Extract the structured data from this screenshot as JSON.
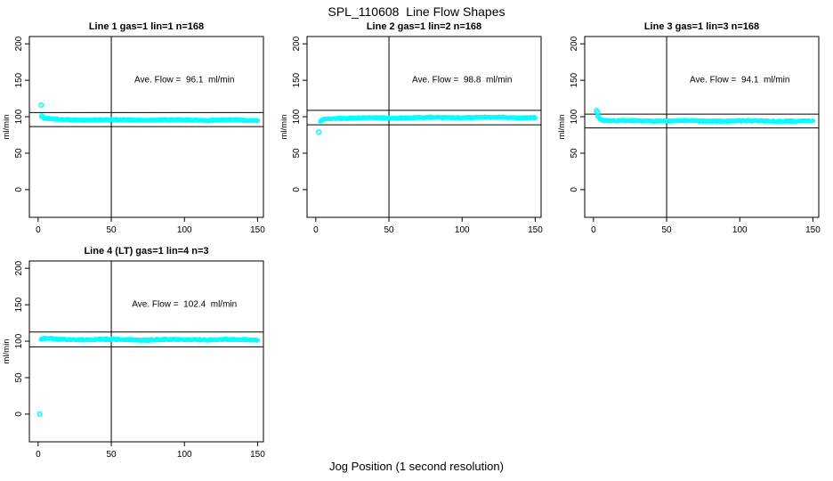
{
  "title": "SPL_110608  Line Flow Shapes",
  "xlabel": "Jog Position (1 second resolution)",
  "ylabel": "ml/min",
  "colors": {
    "points": "#00FFFF",
    "axis": "#000000",
    "background": "#FFFFFF"
  },
  "chart_data": [
    {
      "type": "scatter",
      "title": "Line 1 gas=1 lin=1 n=168",
      "n": 168,
      "ave_flow": 96.1,
      "annotation": "Ave. Flow =  96.1  ml/min",
      "ylabel": "ml/min",
      "x_ticks": [
        0,
        50,
        100,
        150
      ],
      "y_ticks": [
        0,
        50,
        100,
        150,
        200
      ],
      "xlim": [
        -6,
        154
      ],
      "ylim": [
        -38,
        210
      ],
      "ref_lines": {
        "upper": 105.7,
        "lower": 86.5,
        "vertical_x": 50
      },
      "outliers": [
        [
          2,
          116
        ],
        [
          2.5,
          101
        ]
      ],
      "band": {
        "x": [
          3,
          4,
          6,
          10,
          15,
          25,
          50,
          90,
          120,
          150
        ],
        "y": [
          99.5,
          98.2,
          97.2,
          96.4,
          96.0,
          95.7,
          95.6,
          95.5,
          95.3,
          95.2
        ],
        "halfwidth": 1.0,
        "x_start": 3,
        "x_end": 150
      },
      "annotation_center": [
        100,
        147
      ]
    },
    {
      "type": "scatter",
      "title": "Line 2 gas=1 lin=2 n=168",
      "n": 168,
      "ave_flow": 98.8,
      "annotation": "Ave. Flow =  98.8  ml/min",
      "ylabel": "ml/min",
      "x_ticks": [
        0,
        50,
        100,
        150
      ],
      "y_ticks": [
        0,
        50,
        100,
        150,
        200
      ],
      "xlim": [
        -6,
        154
      ],
      "ylim": [
        -38,
        210
      ],
      "ref_lines": {
        "upper": 108.7,
        "lower": 88.9,
        "vertical_x": 50
      },
      "outliers": [
        [
          2,
          79
        ]
      ],
      "band": {
        "x": [
          3,
          4,
          5,
          7,
          10,
          15,
          30,
          60,
          100,
          130,
          150
        ],
        "y": [
          93.5,
          95.0,
          96.0,
          97.0,
          97.6,
          98.0,
          98.3,
          98.6,
          98.9,
          98.9,
          98.6
        ],
        "halfwidth": 1.0,
        "x_start": 3,
        "x_end": 150
      },
      "annotation_center": [
        100,
        147
      ]
    },
    {
      "type": "scatter",
      "title": "Line 3 gas=1 lin=3 n=168",
      "n": 168,
      "ave_flow": 94.1,
      "annotation": "Ave. Flow =  94.1  ml/min",
      "ylabel": "ml/min",
      "x_ticks": [
        0,
        50,
        100,
        150
      ],
      "y_ticks": [
        0,
        50,
        100,
        150,
        200
      ],
      "xlim": [
        -6,
        154
      ],
      "ylim": [
        -38,
        210
      ],
      "ref_lines": {
        "upper": 103.5,
        "lower": 84.7,
        "vertical_x": 50
      },
      "outliers": [
        [
          2,
          108.5
        ],
        [
          2.8,
          106.5
        ],
        [
          3,
          101
        ]
      ],
      "band": {
        "x": [
          3.5,
          4,
          5,
          6,
          8,
          12,
          20,
          50,
          100,
          140,
          150
        ],
        "y": [
          100.0,
          98.0,
          96.6,
          95.8,
          95.0,
          94.5,
          94.3,
          94.2,
          94.2,
          94.0,
          93.6
        ],
        "halfwidth": 1.0,
        "x_start": 3.5,
        "x_end": 150
      },
      "annotation_center": [
        100,
        147
      ]
    },
    {
      "type": "scatter",
      "title": "Line 4 (LT) gas=1 lin=4 n=3",
      "n": 3,
      "ave_flow": 102.4,
      "annotation": "Ave. Flow =  102.4  ml/min",
      "ylabel": "ml/min",
      "x_ticks": [
        0,
        50,
        100,
        150
      ],
      "y_ticks": [
        0,
        50,
        100,
        150,
        200
      ],
      "xlim": [
        -6,
        154
      ],
      "ylim": [
        -38,
        210
      ],
      "ref_lines": {
        "upper": 112.6,
        "lower": 92.2,
        "vertical_x": 50
      },
      "outliers": [
        [
          1,
          0
        ]
      ],
      "band": {
        "x": [
          2,
          4,
          7,
          10,
          14,
          20,
          40,
          70,
          100,
          130,
          150
        ],
        "y": [
          102.8,
          103.6,
          103.4,
          102.8,
          102.3,
          102.2,
          102.4,
          101.9,
          102.2,
          102.1,
          101.8
        ],
        "halfwidth": 1.1,
        "x_start": 2,
        "x_end": 150
      },
      "annotation_center": [
        100,
        147
      ]
    }
  ]
}
